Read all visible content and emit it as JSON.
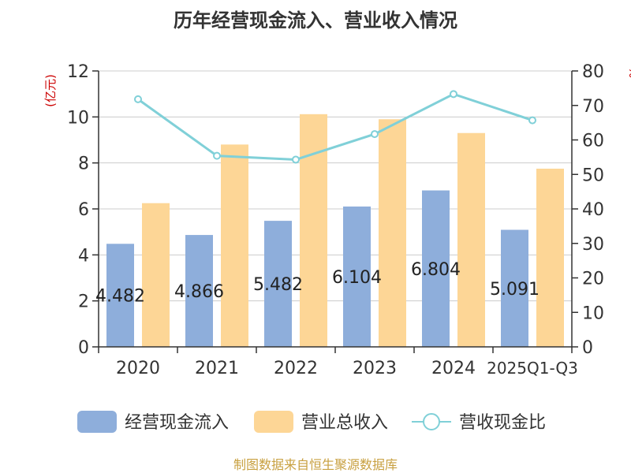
{
  "chart_data": {
    "type": "bar",
    "title": "历年经营现金流入、营业收入情况",
    "y_left_unit": "(亿元)",
    "y_right_unit": "%",
    "categories": [
      "2020",
      "2021",
      "2022",
      "2023",
      "2024",
      "2025Q1-Q3"
    ],
    "ylim_left": [
      0,
      12
    ],
    "ylim_right": [
      0,
      80
    ],
    "left_ticks": [
      0,
      2,
      4,
      6,
      8,
      10,
      12
    ],
    "right_ticks": [
      0,
      10,
      20,
      30,
      40,
      50,
      60,
      70,
      80
    ],
    "series": [
      {
        "name": "经营现金流入",
        "type": "bar",
        "axis": "left",
        "color": "#8eaedb",
        "values": [
          4.482,
          4.866,
          5.482,
          6.104,
          6.804,
          5.091
        ],
        "labels": [
          "4.482",
          "4.866",
          "5.482",
          "6.104",
          "6.804",
          "5.091"
        ]
      },
      {
        "name": "营业总收入",
        "type": "bar",
        "axis": "left",
        "color": "#fdd696",
        "values": [
          6.25,
          8.8,
          10.12,
          9.9,
          9.3,
          7.75
        ]
      },
      {
        "name": "营收现金比",
        "type": "line",
        "axis": "right",
        "color": "#80d0d8",
        "values": [
          71.8,
          55.4,
          54.3,
          61.7,
          73.3,
          65.7
        ]
      }
    ],
    "grid": true,
    "legend_position": "bottom"
  },
  "source": "制图数据来自恒生聚源数据库",
  "colors": {
    "title": "#333333",
    "axis": "#333333",
    "grid": "#cccccc",
    "unit": "#cc0000",
    "source": "#c8a040"
  }
}
